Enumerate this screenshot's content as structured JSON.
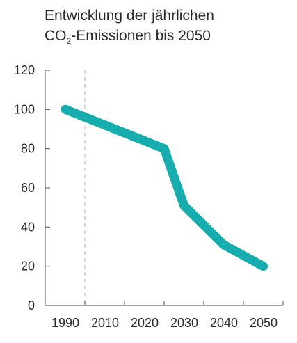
{
  "title": {
    "line1": "Entwicklung der jährlichen",
    "prefix": "CO",
    "subscript": "2",
    "suffix": "-Emissionen bis 2050"
  },
  "colors": {
    "line": "#17ACAD",
    "axis": "#6b6b6b",
    "reference_line": "#bcbcbc",
    "text": "#2a2a2a"
  },
  "chart_data": {
    "type": "line",
    "title": "Entwicklung der jährlichen CO2-Emissionen bis 2050",
    "xlabel": "",
    "ylabel": "",
    "categories": [
      "1990",
      "2010",
      "2020",
      "2030",
      "2040",
      "2050"
    ],
    "x_ticks": [
      1990,
      2010,
      2020,
      2030,
      2040,
      2050
    ],
    "y_ticks": [
      0,
      20,
      40,
      60,
      80,
      100,
      120
    ],
    "ylim": [
      0,
      120
    ],
    "grid": false,
    "legend": "none",
    "reference_line_at_category": "1990",
    "series": [
      {
        "x": [
          1990,
          2020,
          2025,
          2035,
          2045
        ],
        "y": [
          100,
          80,
          51,
          31,
          20
        ],
        "x_note_unused": null
      }
    ]
  }
}
